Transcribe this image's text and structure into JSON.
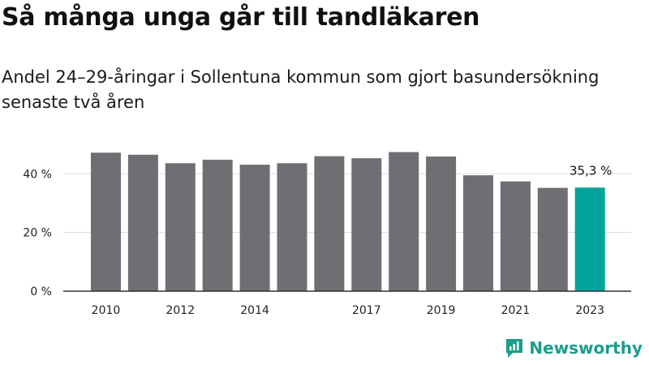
{
  "title": "Så många unga går till tandläkaren",
  "subtitle": "Andel 24–29-åringar i Sollentuna kommun som gjort basundersökning senaste två åren",
  "brand": {
    "name": "Newsworthy",
    "icon": "newsworthy-logo-icon"
  },
  "colors": {
    "bar": "#6e6e73",
    "highlight": "#00a39a",
    "grid": "#dddddd",
    "axis": "#333333"
  },
  "chart_data": {
    "type": "bar",
    "categories": [
      "2010",
      "2011",
      "2012",
      "2013",
      "2014",
      "2015",
      "2016",
      "2017",
      "2018",
      "2019",
      "2020",
      "2021",
      "2022",
      "2023"
    ],
    "values": [
      47.2,
      46.5,
      43.6,
      44.8,
      43.1,
      43.6,
      46.0,
      45.3,
      47.4,
      45.9,
      39.5,
      37.4,
      35.2,
      35.3
    ],
    "x_tick_labels": [
      "2010",
      "",
      "2012",
      "",
      "2014",
      "",
      "",
      "2017",
      "",
      "2019",
      "",
      "2021",
      "",
      "2023"
    ],
    "y_ticks": [
      0,
      20,
      40
    ],
    "y_tick_labels": [
      "0 %",
      "20 %",
      "40 %"
    ],
    "ylim": [
      0,
      55
    ],
    "highlight_index": 13,
    "annotation": "35,3 %",
    "grid": true
  }
}
